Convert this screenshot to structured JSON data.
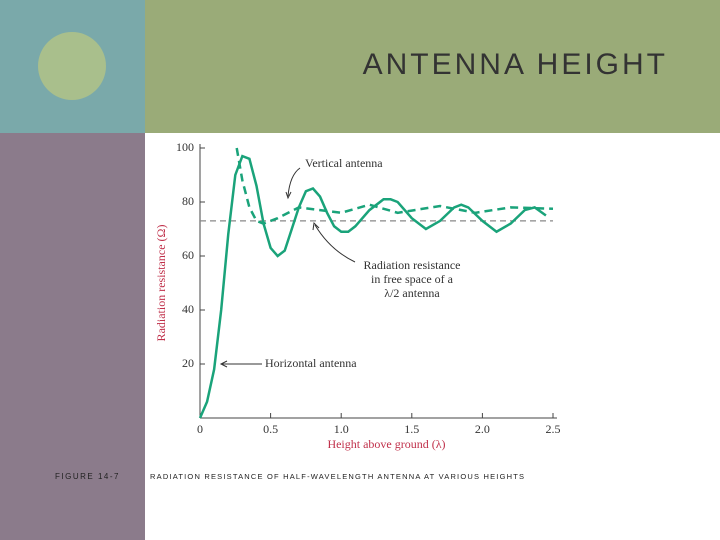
{
  "slide": {
    "title": "ANTENNA HEIGHT",
    "figure_label": "FIGURE 14-7",
    "caption": "RADIATION RESISTANCE OF HALF-WAVELENGTH ANTENNA AT VARIOUS HEIGHTS"
  },
  "chart_data": {
    "type": "line",
    "x_label": "Height above ground (λ)",
    "y_label": "Radiation resistance (Ω)",
    "xlim": [
      0,
      2.5
    ],
    "ylim": [
      0,
      100
    ],
    "xticks": [
      0,
      0.5,
      {
        "value": 1,
        "label": "1.0"
      },
      1.5,
      {
        "value": 2,
        "label": "2.0"
      },
      2.5
    ],
    "yticks": [
      20,
      40,
      60,
      80,
      100
    ],
    "series": [
      {
        "name": "Horizontal antenna",
        "color": "#1aa37a",
        "dashed": false,
        "x": [
          0,
          0.05,
          0.1,
          0.15,
          0.2,
          0.25,
          0.3,
          0.35,
          0.4,
          0.45,
          0.5,
          0.55,
          0.6,
          0.65,
          0.7,
          0.75,
          0.8,
          0.85,
          0.9,
          0.95,
          1.0,
          1.05,
          1.1,
          1.2,
          1.3,
          1.35,
          1.4,
          1.5,
          1.6,
          1.7,
          1.8,
          1.85,
          1.9,
          2.0,
          2.1,
          2.2,
          2.3,
          2.37,
          2.45
        ],
        "values": [
          0,
          6,
          18,
          40,
          68,
          90,
          97,
          96,
          86,
          72,
          63,
          60,
          62,
          70,
          78,
          84,
          85,
          82,
          76,
          71,
          69,
          69,
          71,
          77,
          81,
          81,
          80,
          74,
          70,
          73,
          78,
          79,
          78,
          73,
          69,
          72,
          77,
          78,
          75
        ]
      },
      {
        "name": "Vertical antenna",
        "color": "#1aa37a",
        "dashed": true,
        "x": [
          0.26,
          0.3,
          0.35,
          0.4,
          0.45,
          0.55,
          0.7,
          0.85,
          1.0,
          1.2,
          1.4,
          1.7,
          1.95,
          2.2,
          2.5
        ],
        "values": [
          100,
          88,
          78,
          73,
          72,
          74,
          78,
          77,
          76,
          79,
          76,
          78.5,
          76,
          78,
          77.5
        ]
      }
    ],
    "reference_line": {
      "value": 73,
      "color": "#888888",
      "label": [
        "Radiation resistance",
        "in free space of a",
        "λ/2 antenna"
      ]
    }
  }
}
